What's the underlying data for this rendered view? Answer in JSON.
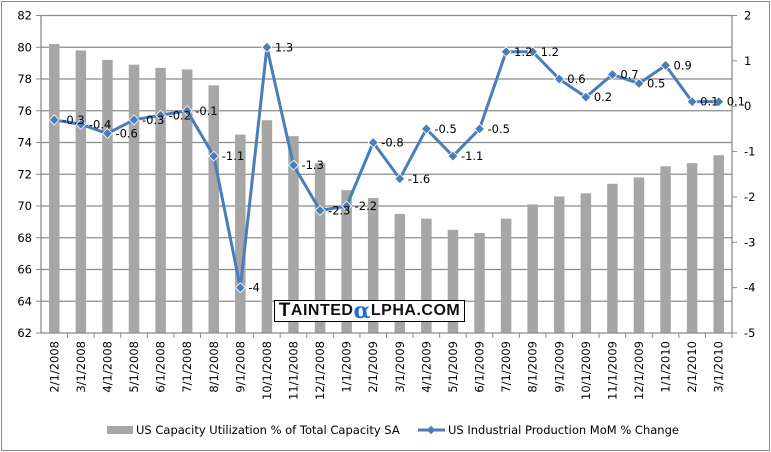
{
  "chart_data": {
    "type": "bar+line",
    "title": "",
    "categories": [
      "2/1/2008",
      "3/1/2008",
      "4/1/2008",
      "5/1/2008",
      "6/1/2008",
      "7/1/2008",
      "8/1/2008",
      "9/1/2008",
      "10/1/2008",
      "11/1/2008",
      "12/1/2008",
      "1/1/2009",
      "2/1/2009",
      "3/1/2009",
      "4/1/2009",
      "5/1/2009",
      "6/1/2009",
      "7/1/2009",
      "8/1/2009",
      "9/1/2009",
      "10/1/2009",
      "11/1/2009",
      "12/1/2009",
      "1/1/2010",
      "2/1/2010",
      "3/1/2010"
    ],
    "series": [
      {
        "name": "US Capacity Utilization % of Total Capacity SA",
        "type": "bar",
        "axis": "left",
        "color": "#a6a6a6",
        "values": [
          80.2,
          79.8,
          79.2,
          78.9,
          78.7,
          78.6,
          77.6,
          74.5,
          75.4,
          74.4,
          72.7,
          71.0,
          70.5,
          69.5,
          69.2,
          68.5,
          68.3,
          69.2,
          70.1,
          70.6,
          70.8,
          71.4,
          71.8,
          72.5,
          72.7,
          73.2
        ]
      },
      {
        "name": "US Industrial Production MoM % Change",
        "type": "line",
        "axis": "right",
        "color": "#4a7ebb",
        "values": [
          -0.3,
          -0.4,
          -0.6,
          -0.3,
          -0.2,
          -0.1,
          -1.1,
          -4,
          1.3,
          -1.3,
          -2.3,
          -2.2,
          -0.8,
          -1.6,
          -0.5,
          -1.1,
          -0.5,
          1.2,
          1.2,
          0.6,
          0.2,
          0.7,
          0.5,
          0.9,
          0.1,
          0.1
        ],
        "data_labels": [
          "-0.3",
          "-0.4",
          "-0.6",
          "-0.3",
          "-0.2",
          "-0.1",
          "-1.1",
          "-4",
          "1.3",
          "-1.3",
          "-2.3",
          "-2.2",
          "-0.8",
          "-1.6",
          "-0.5",
          "-1.1",
          "-0.5",
          "1.2",
          "1.2",
          "0.6",
          "0.2",
          "0.7",
          "0.5",
          "0.9",
          "0.1",
          "0.1"
        ]
      }
    ],
    "left_axis": {
      "min": 62,
      "max": 82,
      "step": 2,
      "ticks": [
        "82",
        "80",
        "78",
        "76",
        "74",
        "72",
        "70",
        "68",
        "66",
        "64",
        "62"
      ]
    },
    "right_axis": {
      "min": -5,
      "max": 2,
      "step": 1,
      "ticks": [
        "2",
        "1",
        "0",
        "-1",
        "-2",
        "-3",
        "-4",
        "-5"
      ]
    },
    "xlabel": "",
    "ylabel": "",
    "grid": true,
    "legend_position": "bottom"
  },
  "watermark": {
    "text": "TAINTEDαLPHA.COM",
    "parts": [
      "T",
      "AINTED",
      "α",
      "LPHA.COM"
    ]
  }
}
